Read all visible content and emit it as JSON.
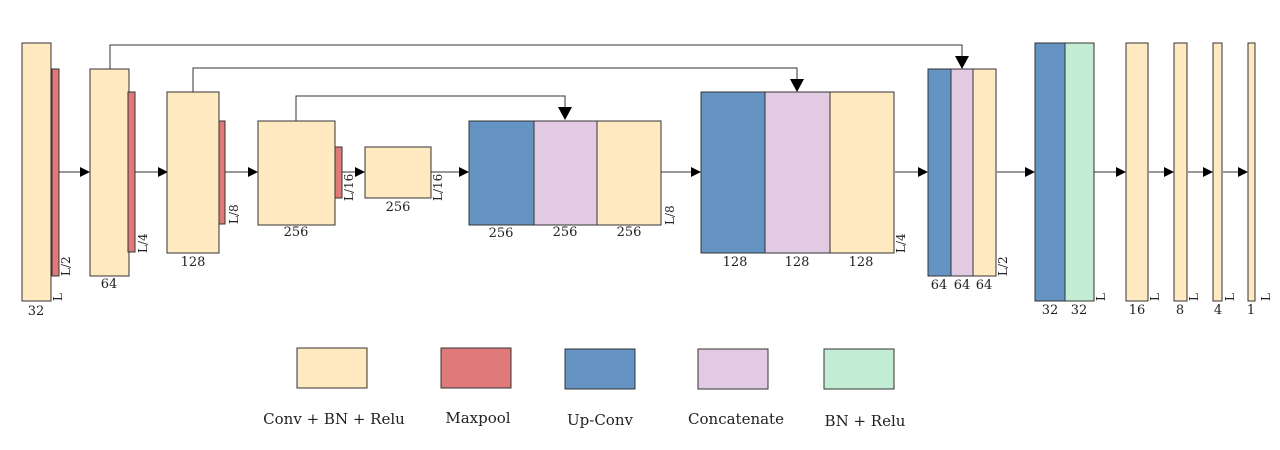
{
  "colors": {
    "conv": "#ffe9c1",
    "maxpool": "#e07a7a",
    "upconv": "#6593c4",
    "concat": "#e2cbe2",
    "bnrelu": "#c2ecd4"
  },
  "legend": [
    {
      "key": "conv",
      "label": "Conv + BN + Relu"
    },
    {
      "key": "maxpool",
      "label": "Maxpool"
    },
    {
      "key": "upconv",
      "label": "Up-Conv"
    },
    {
      "key": "concat",
      "label": "Concatenate"
    },
    {
      "key": "bnrelu",
      "label": "BN + Relu"
    }
  ],
  "channel_labels": [
    "32",
    "64",
    "128",
    "256",
    "256",
    "256",
    "256",
    "256",
    "128",
    "128",
    "128",
    "64",
    "64",
    "64",
    "32",
    "32",
    "16",
    "8",
    "4",
    "1"
  ],
  "length_labels": [
    "L",
    "L/2",
    "L/4",
    "L/8",
    "L/16",
    "L/16",
    "L/8",
    "L/4",
    "L/2",
    "L",
    "L",
    "L",
    "L",
    "L"
  ]
}
